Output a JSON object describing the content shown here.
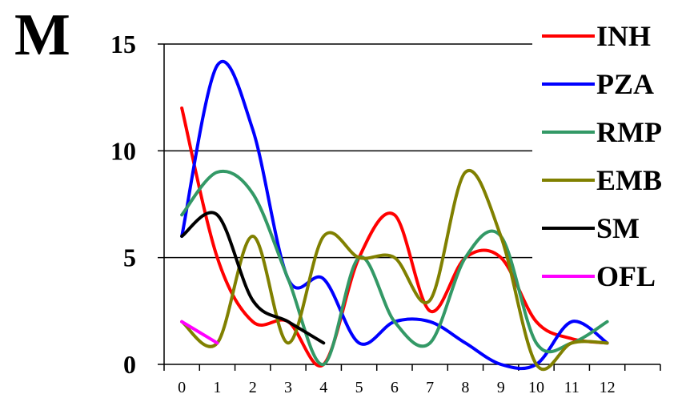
{
  "panel_label": "M",
  "chart_data": {
    "type": "line",
    "x_ticks": [
      "0",
      "1",
      "2",
      "3",
      "4",
      "5",
      "6",
      "7",
      "8",
      "9",
      "10",
      "11",
      "12"
    ],
    "y_ticks": [
      "0",
      "5",
      "10",
      "15"
    ],
    "ylim": [
      0,
      15
    ],
    "xlim": [
      -0.5,
      13.5
    ],
    "grid": true,
    "legend_position": "right",
    "series": [
      {
        "name": "INH",
        "color": "#ff0000",
        "x": [
          0,
          1,
          2,
          3,
          4,
          5,
          6,
          7,
          8,
          9,
          10,
          11,
          12
        ],
        "y": [
          12,
          5,
          2,
          2,
          0,
          5,
          7,
          2.5,
          5,
          5,
          2,
          1.2,
          1
        ]
      },
      {
        "name": "PZA",
        "color": "#0000ff",
        "x": [
          0,
          1,
          2,
          3,
          4,
          5,
          6,
          7,
          8,
          9,
          10,
          11,
          12
        ],
        "y": [
          6,
          14,
          11,
          4,
          4,
          1,
          2,
          2,
          1,
          0,
          0,
          2,
          1
        ]
      },
      {
        "name": "RMP",
        "color": "#339966",
        "x": [
          0,
          1,
          2,
          3,
          4,
          5,
          6,
          7,
          8,
          9,
          10,
          11,
          12
        ],
        "y": [
          7,
          9,
          8,
          4,
          0,
          5,
          2,
          1,
          5,
          6,
          1,
          1,
          2
        ]
      },
      {
        "name": "EMB",
        "color": "#808000",
        "x": [
          0,
          1,
          2,
          3,
          4,
          5,
          6,
          7,
          8,
          9,
          10,
          11,
          12
        ],
        "y": [
          2,
          1,
          6,
          1,
          6,
          5,
          5,
          3,
          9,
          6,
          0,
          1,
          1
        ]
      },
      {
        "name": "SM",
        "color": "#000000",
        "x": [
          0,
          1,
          2,
          3,
          4
        ],
        "y": [
          6,
          7,
          3,
          2,
          1
        ]
      },
      {
        "name": "OFL",
        "color": "#ff00ff",
        "x": [
          0,
          1
        ],
        "y": [
          2,
          1
        ]
      }
    ]
  }
}
